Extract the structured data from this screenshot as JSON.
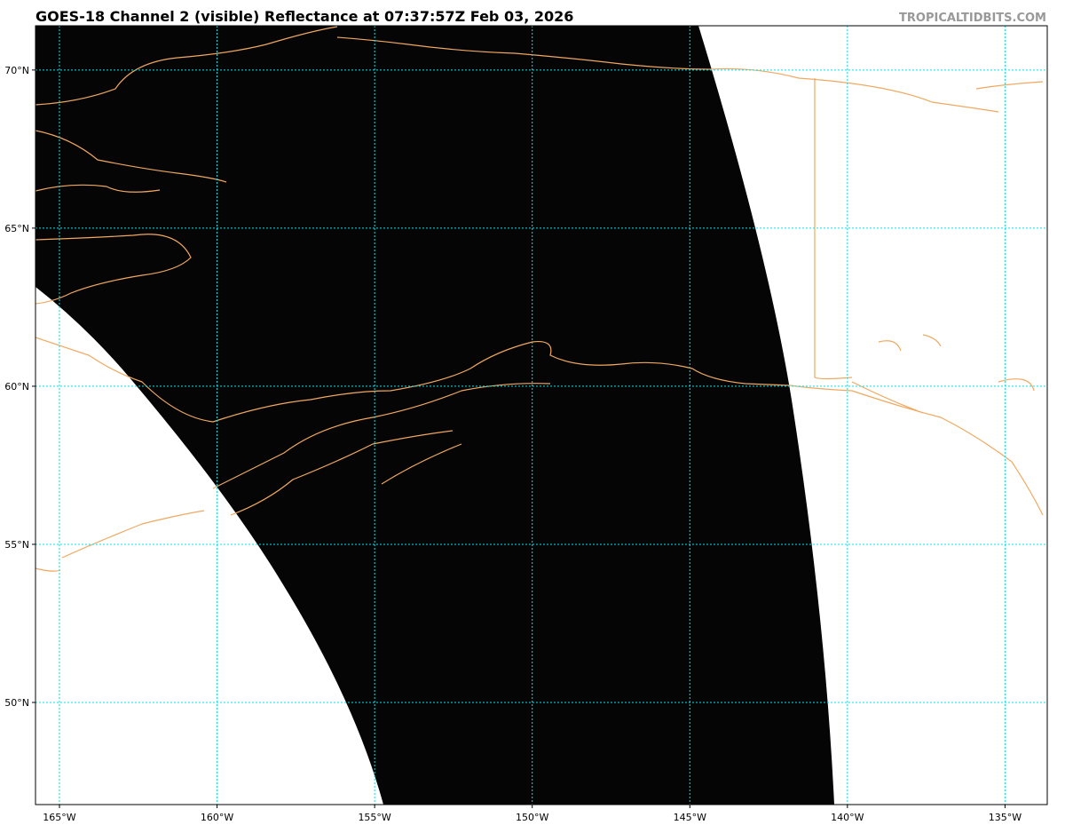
{
  "header": {
    "title": "GOES-18 Channel 2 (visible) Reflectance at 07:37:57Z Feb 03, 2026",
    "watermark": "TROPICALTIDBITS.COM"
  },
  "map": {
    "lon_lim": [
      -165.76,
      -133.66
    ],
    "lat_lim": [
      46.77,
      71.4
    ],
    "lon_ticks": [
      {
        "value": -165,
        "label": "165°W"
      },
      {
        "value": -160,
        "label": "160°W"
      },
      {
        "value": -155,
        "label": "155°W"
      },
      {
        "value": -150,
        "label": "150°W"
      },
      {
        "value": -145,
        "label": "145°W"
      },
      {
        "value": -140,
        "label": "140°W"
      },
      {
        "value": -135,
        "label": "135°W"
      }
    ],
    "lat_ticks": [
      {
        "value": 50,
        "label": "50°N"
      },
      {
        "value": 55,
        "label": "55°N"
      },
      {
        "value": 60,
        "label": "60°N"
      },
      {
        "value": 65,
        "label": "65°N"
      },
      {
        "value": 70,
        "label": "70°N"
      }
    ],
    "grid_color": "#00e5ee",
    "coast_color": "#f0a860"
  }
}
